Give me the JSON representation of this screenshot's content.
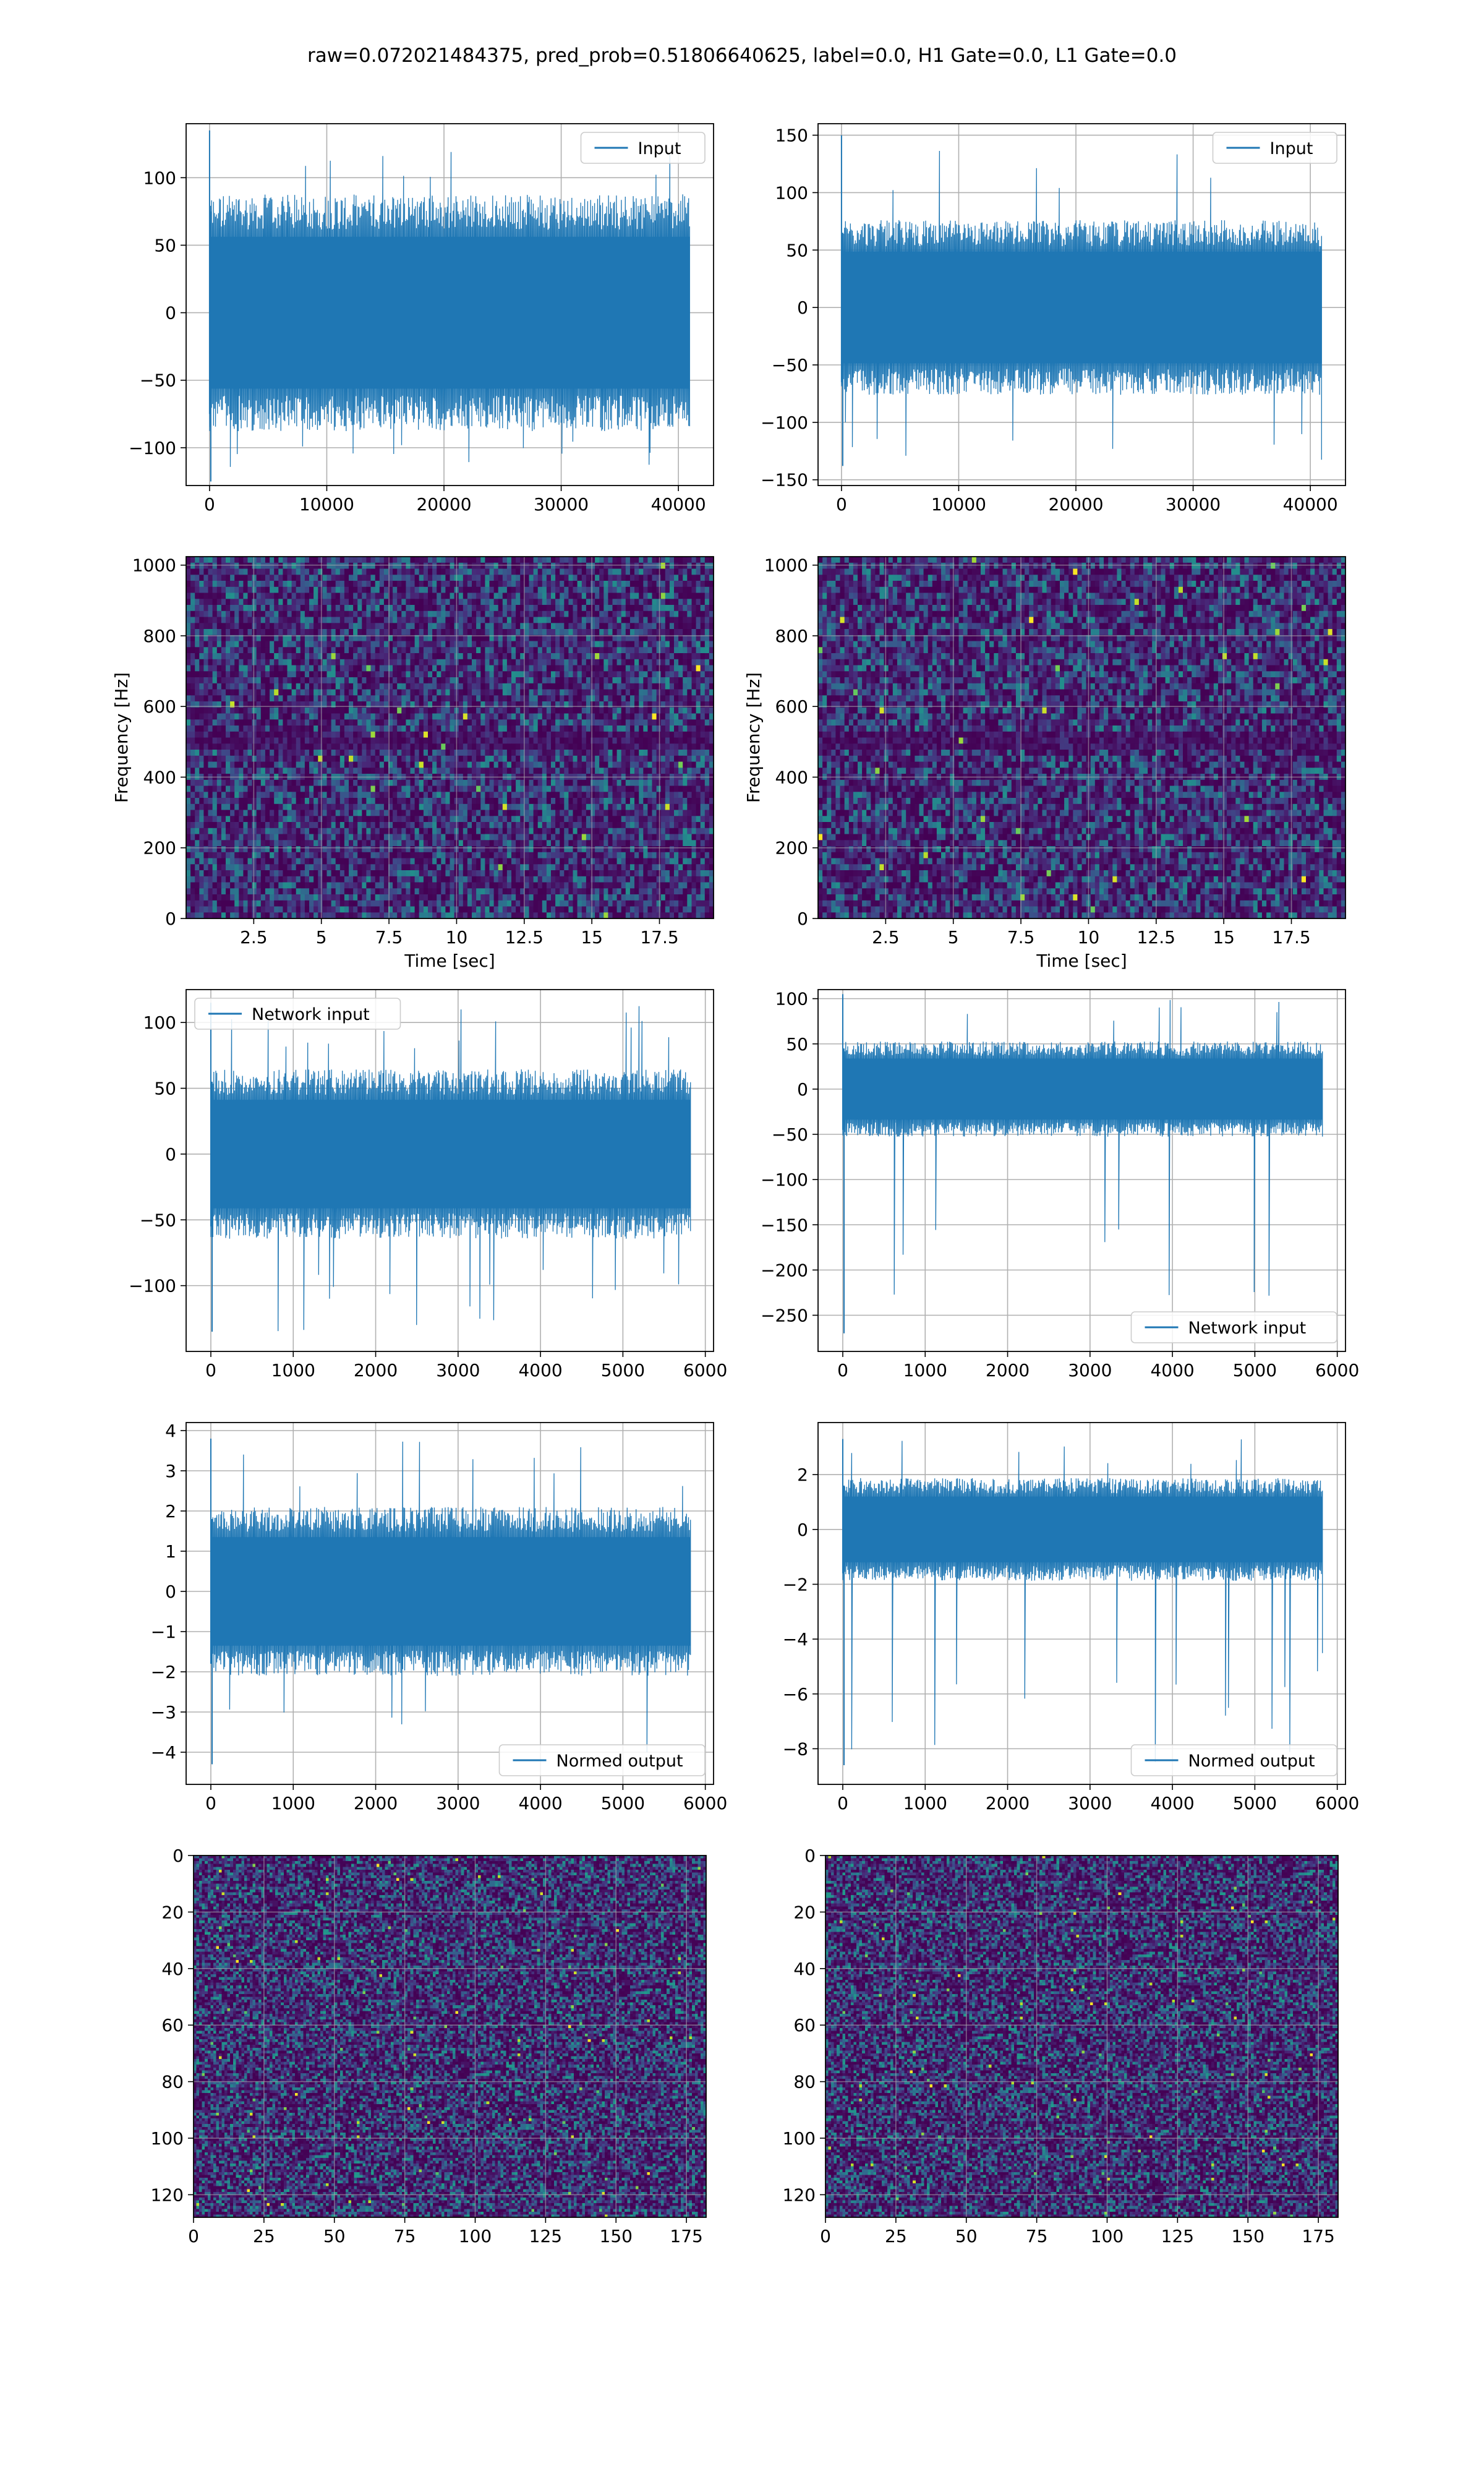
{
  "figure": {
    "suptitle": "raw=0.072021484375, pred_prob=0.51806640625, label=0.0, H1 Gate=0.0, L1 Gate=0.0"
  },
  "colors": {
    "line": "#1f77b4",
    "viridis_low": "#440154",
    "viridis_mid": "#31688e",
    "viridis_high": "#35b779",
    "viridis_peak": "#fde725",
    "grid": "#b0b0b0"
  },
  "chart_data": [
    {
      "id": "row1-left",
      "type": "line",
      "grid": true,
      "legend": {
        "entries": [
          "Input"
        ],
        "loc": "upper right"
      },
      "xlabel": "",
      "ylabel": "",
      "xlim": [
        -2000,
        43000
      ],
      "ylim": [
        -128,
        140
      ],
      "xticks": [
        0,
        10000,
        20000,
        30000,
        40000
      ],
      "yticks": [
        -100,
        -50,
        0,
        50,
        100
      ],
      "series": [
        {
          "name": "Input",
          "envelope": {
            "x": [
              0,
              40960
            ],
            "core": [
              -75,
              75
            ],
            "spike_max": 135,
            "spike_min": -125
          }
        }
      ]
    },
    {
      "id": "row1-right",
      "type": "line",
      "grid": true,
      "legend": {
        "entries": [
          "Input"
        ],
        "loc": "upper right"
      },
      "xlabel": "",
      "ylabel": "",
      "xlim": [
        -2000,
        43000
      ],
      "ylim": [
        -155,
        160
      ],
      "xticks": [
        0,
        10000,
        20000,
        30000,
        40000
      ],
      "yticks": [
        -150,
        -100,
        -50,
        0,
        50,
        100,
        150
      ],
      "series": [
        {
          "name": "Input",
          "envelope": {
            "x": [
              0,
              40960
            ],
            "core": [
              -65,
              65
            ],
            "spike_max": 150,
            "spike_min": -138
          }
        }
      ]
    },
    {
      "id": "row2-left",
      "type": "heatmap",
      "grid": true,
      "xlabel": "Time [sec]",
      "ylabel": "Frequency [Hz]",
      "xlim": [
        0,
        19.5
      ],
      "ylim": [
        0,
        1024
      ],
      "xticks": [
        2.5,
        5.0,
        7.5,
        10.0,
        12.5,
        15.0,
        17.5
      ],
      "yticks": [
        0,
        200,
        400,
        600,
        800,
        1000
      ],
      "colormap": "viridis",
      "note_bands": [
        500,
        830
      ]
    },
    {
      "id": "row2-right",
      "type": "heatmap",
      "grid": true,
      "xlabel": "Time [sec]",
      "ylabel": "Frequency [Hz]",
      "xlim": [
        0,
        19.5
      ],
      "ylim": [
        0,
        1024
      ],
      "xticks": [
        2.5,
        5.0,
        7.5,
        10.0,
        12.5,
        15.0,
        17.5
      ],
      "yticks": [
        0,
        200,
        400,
        600,
        800,
        1000
      ],
      "colormap": "viridis",
      "note_bands": [
        500
      ]
    },
    {
      "id": "row3-left",
      "type": "line",
      "grid": true,
      "legend": {
        "entries": [
          "Network input"
        ],
        "loc": "upper left"
      },
      "xlabel": "",
      "ylabel": "",
      "xlim": [
        -300,
        6100
      ],
      "ylim": [
        -150,
        125
      ],
      "xticks": [
        0,
        1000,
        2000,
        3000,
        4000,
        5000,
        6000
      ],
      "yticks": [
        -100,
        -50,
        0,
        50,
        100
      ],
      "series": [
        {
          "name": "Network input",
          "envelope": {
            "x": [
              0,
              5820
            ],
            "core": [
              -55,
              55
            ],
            "spike_max": 115,
            "spike_min": -135
          }
        }
      ]
    },
    {
      "id": "row3-right",
      "type": "line",
      "grid": true,
      "legend": {
        "entries": [
          "Network input"
        ],
        "loc": "lower right"
      },
      "xlabel": "",
      "ylabel": "",
      "xlim": [
        -300,
        6100
      ],
      "ylim": [
        -290,
        110
      ],
      "xticks": [
        0,
        1000,
        2000,
        3000,
        4000,
        5000,
        6000
      ],
      "yticks": [
        -250,
        -200,
        -150,
        -100,
        -50,
        0,
        50,
        100
      ],
      "series": [
        {
          "name": "Network input",
          "envelope": {
            "x": [
              0,
              5820
            ],
            "core": [
              -45,
              45
            ],
            "spike_max": 105,
            "spike_min": -270
          }
        }
      ]
    },
    {
      "id": "row4-left",
      "type": "line",
      "grid": true,
      "legend": {
        "entries": [
          "Normed output"
        ],
        "loc": "lower right"
      },
      "xlabel": "",
      "ylabel": "",
      "xlim": [
        -300,
        6100
      ],
      "ylim": [
        -4.8,
        4.2
      ],
      "xticks": [
        0,
        1000,
        2000,
        3000,
        4000,
        5000,
        6000
      ],
      "yticks": [
        -4,
        -3,
        -2,
        -1,
        0,
        1,
        2,
        3,
        4
      ],
      "series": [
        {
          "name": "Normed output",
          "envelope": {
            "x": [
              0,
              5820
            ],
            "core": [
              -1.8,
              1.8
            ],
            "spike_max": 3.8,
            "spike_min": -4.3
          }
        }
      ]
    },
    {
      "id": "row4-right",
      "type": "line",
      "grid": true,
      "legend": {
        "entries": [
          "Normed output"
        ],
        "loc": "lower right"
      },
      "xlabel": "",
      "ylabel": "",
      "xlim": [
        -300,
        6100
      ],
      "ylim": [
        -9.3,
        3.9
      ],
      "xticks": [
        0,
        1000,
        2000,
        3000,
        4000,
        5000,
        6000
      ],
      "yticks": [
        -8,
        -6,
        -4,
        -2,
        0,
        2
      ],
      "series": [
        {
          "name": "Normed output",
          "envelope": {
            "x": [
              0,
              5820
            ],
            "core": [
              -1.6,
              1.6
            ],
            "spike_max": 3.3,
            "spike_min": -8.6
          }
        }
      ]
    },
    {
      "id": "row5-left",
      "type": "heatmap",
      "grid": true,
      "xlabel": "",
      "ylabel": "",
      "xlim": [
        0,
        182
      ],
      "ylim": [
        128,
        0
      ],
      "xticks": [
        0,
        25,
        50,
        75,
        100,
        125,
        150,
        175
      ],
      "yticks": [
        0,
        20,
        40,
        60,
        80,
        100,
        120
      ],
      "colormap": "viridis",
      "matrix_shape": [
        128,
        182
      ]
    },
    {
      "id": "row5-right",
      "type": "heatmap",
      "grid": true,
      "xlabel": "",
      "ylabel": "",
      "xlim": [
        0,
        182
      ],
      "ylim": [
        128,
        0
      ],
      "xticks": [
        0,
        25,
        50,
        75,
        100,
        125,
        150,
        175
      ],
      "yticks": [
        0,
        20,
        40,
        60,
        80,
        100,
        120
      ],
      "colormap": "viridis",
      "matrix_shape": [
        128,
        182
      ]
    }
  ]
}
